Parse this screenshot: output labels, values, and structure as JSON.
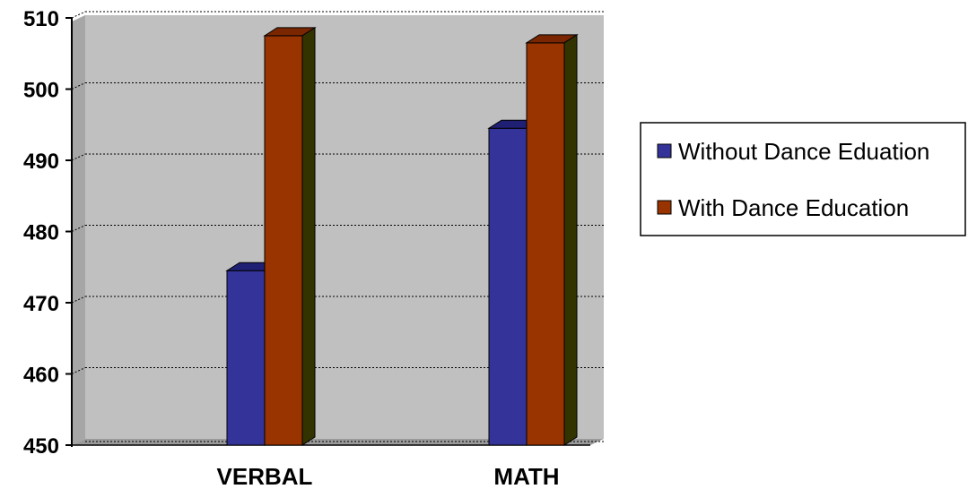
{
  "chart_data": {
    "type": "bar",
    "categories": [
      "VERBAL",
      "MATH"
    ],
    "series": [
      {
        "name": "Without Dance Eduation",
        "values": [
          474.5,
          494.5
        ],
        "color": "#333399",
        "top_color": "#1f1f73",
        "side_color": "#1a1a40"
      },
      {
        "name": "With Dance Education",
        "values": [
          507.5,
          506.5
        ],
        "color": "#993300",
        "top_color": "#7a2600",
        "side_color": "#333300"
      }
    ],
    "yticks": [
      450,
      460,
      470,
      480,
      490,
      500,
      510
    ],
    "ylim": [
      450,
      510
    ],
    "grid": true,
    "legend_position": "right",
    "plot_background": "#c0c0c0"
  }
}
